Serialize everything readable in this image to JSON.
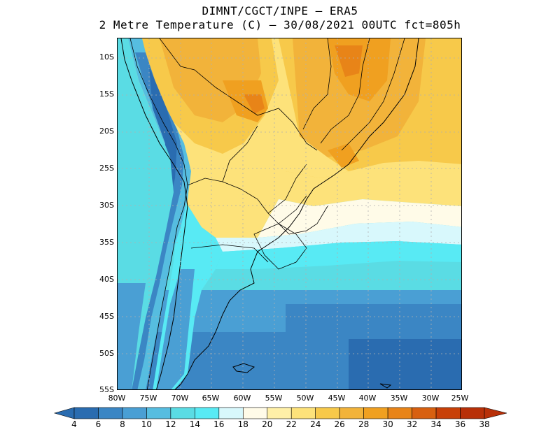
{
  "title": {
    "line1": "DIMNT/CGCT/INPE –  ERA5",
    "line2": "2 Metre Temperature (C) –  30/08/2021 00UTC fct=805h"
  },
  "map": {
    "lat_ticks": [
      "10S",
      "15S",
      "20S",
      "25S",
      "30S",
      "35S",
      "40S",
      "45S",
      "50S",
      "55S"
    ],
    "lon_ticks": [
      "80W",
      "75W",
      "70W",
      "65W",
      "60W",
      "55W",
      "50W",
      "45W",
      "40W",
      "35W",
      "30W",
      "25W"
    ],
    "lon_range": [
      -80,
      -25
    ],
    "lat_range": [
      -55,
      -7
    ]
  },
  "colorbar": {
    "labels": [
      "4",
      "6",
      "8",
      "10",
      "12",
      "14",
      "16",
      "18",
      "20",
      "22",
      "24",
      "26",
      "28",
      "30",
      "32",
      "34",
      "36",
      "38"
    ],
    "colors": [
      "#2a6cb0",
      "#3b86c4",
      "#4a9fd4",
      "#56bde0",
      "#5adce4",
      "#58eaf4",
      "#d8f8fc",
      "#fffbe8",
      "#fff0a8",
      "#fde27a",
      "#f7c94a",
      "#f2b33a",
      "#f0a020",
      "#e88418",
      "#d86010",
      "#c84008",
      "#b83008"
    ]
  },
  "colors": {
    "ocean_cold": "#2a6cb0",
    "ocean_mid": "#4a9fd4",
    "warm": "#f2b33a",
    "hot": "#e88418"
  }
}
